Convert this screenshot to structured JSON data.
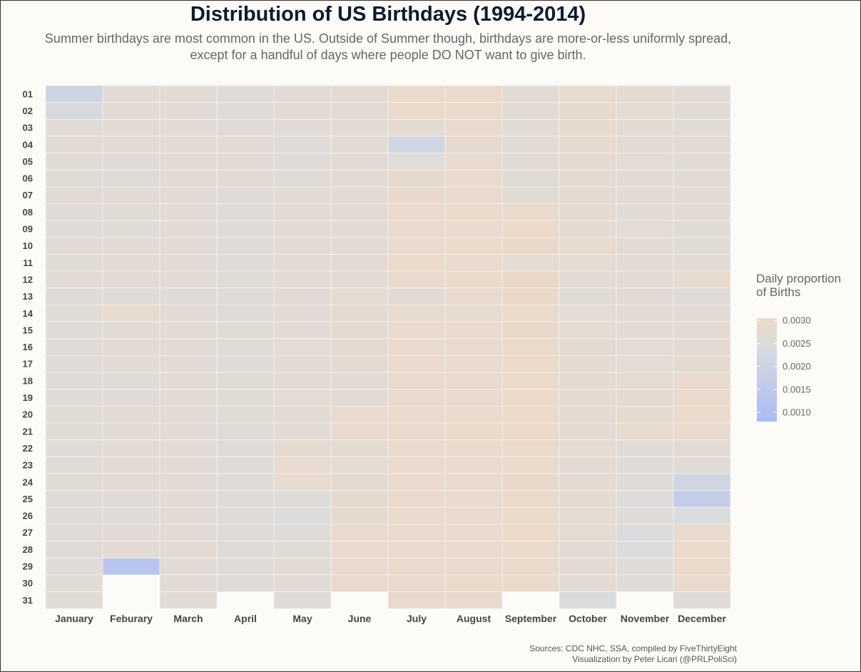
{
  "page": {
    "title": "Distribution of US Birthdays (1994-2014)",
    "subtitle_line1": "Summer birthdays are most common in the US. Outside of Summer though, birthdays are more-or-less uniformly spread,",
    "subtitle_line2": "except for a handful of days where people DO NOT want to give birth.",
    "caption_line1": "Sources: CDC NHC, SSA, compiled by FiveThirtyEight",
    "caption_line2": "Visualization by Peter Licari (@PRLPoliSci)"
  },
  "chart_data": {
    "type": "heatmap",
    "title": "Distribution of US Birthdays (1994-2014)",
    "x_categories": [
      "January",
      "Feburary",
      "March",
      "April",
      "May",
      "June",
      "July",
      "August",
      "September",
      "October",
      "November",
      "December"
    ],
    "y_categories": [
      "01",
      "02",
      "03",
      "04",
      "05",
      "06",
      "07",
      "08",
      "09",
      "10",
      "11",
      "12",
      "13",
      "14",
      "15",
      "16",
      "17",
      "18",
      "19",
      "20",
      "21",
      "22",
      "23",
      "24",
      "25",
      "26",
      "27",
      "28",
      "29",
      "30",
      "31"
    ],
    "legend": {
      "title_line1": "Daily proportion",
      "title_line2": "of Births",
      "range": [
        0.0008,
        0.00305
      ],
      "ticks": [
        0.003,
        0.0025,
        0.002,
        0.0015,
        0.001
      ],
      "tick_labels": [
        "0.0030",
        "0.0025",
        "0.0020",
        "0.0015",
        "0.0010"
      ],
      "color_low": "#a9bcf5",
      "color_mid": "#dcdcdc",
      "color_high": "#ecd9c8",
      "placement": "right"
    },
    "values": [
      [
        0.00205,
        0.0027,
        0.00272,
        0.00263,
        0.0027,
        0.00275,
        0.00295,
        0.00296,
        0.0027,
        0.00288,
        0.00279,
        0.0027
      ],
      [
        0.00235,
        0.00271,
        0.00271,
        0.00266,
        0.00268,
        0.00275,
        0.00294,
        0.00294,
        0.00271,
        0.00285,
        0.00278,
        0.00268
      ],
      [
        0.00264,
        0.0027,
        0.00271,
        0.00266,
        0.0027,
        0.00275,
        0.00281,
        0.00293,
        0.00271,
        0.00286,
        0.00274,
        0.00267
      ],
      [
        0.00275,
        0.00271,
        0.00271,
        0.00275,
        0.00262,
        0.00275,
        0.00215,
        0.00286,
        0.0027,
        0.00285,
        0.00275,
        0.0027
      ],
      [
        0.00268,
        0.00266,
        0.0027,
        0.00271,
        0.00265,
        0.00275,
        0.0026,
        0.0029,
        0.0027,
        0.00282,
        0.00273,
        0.00267
      ],
      [
        0.00266,
        0.00266,
        0.0027,
        0.0027,
        0.00267,
        0.00274,
        0.00285,
        0.00291,
        0.00268,
        0.00282,
        0.00275,
        0.0027
      ],
      [
        0.0027,
        0.0027,
        0.0027,
        0.00265,
        0.00271,
        0.00275,
        0.00298,
        0.0029,
        0.00272,
        0.00282,
        0.00276,
        0.0027
      ],
      [
        0.00264,
        0.00268,
        0.0027,
        0.00265,
        0.00271,
        0.00275,
        0.00294,
        0.00295,
        0.00296,
        0.00282,
        0.00271,
        0.00271
      ],
      [
        0.00264,
        0.00266,
        0.0027,
        0.00266,
        0.0027,
        0.00275,
        0.00293,
        0.0029,
        0.003,
        0.00282,
        0.00273,
        0.00268
      ],
      [
        0.00272,
        0.00275,
        0.00271,
        0.00265,
        0.00271,
        0.00275,
        0.00293,
        0.00294,
        0.00299,
        0.00289,
        0.00275,
        0.00268
      ],
      [
        0.00268,
        0.00271,
        0.00271,
        0.00265,
        0.00271,
        0.00275,
        0.00294,
        0.00293,
        0.00278,
        0.00278,
        0.00276,
        0.0027
      ],
      [
        0.0027,
        0.0027,
        0.0027,
        0.00268,
        0.00275,
        0.00275,
        0.00293,
        0.00294,
        0.00299,
        0.00276,
        0.00275,
        0.00288
      ],
      [
        0.00263,
        0.00262,
        0.00263,
        0.00261,
        0.0027,
        0.00278,
        0.00272,
        0.0029,
        0.00299,
        0.00268,
        0.00271,
        0.00266
      ],
      [
        0.00268,
        0.00292,
        0.0027,
        0.00266,
        0.0027,
        0.00283,
        0.00293,
        0.00293,
        0.003,
        0.00278,
        0.00275,
        0.00271
      ],
      [
        0.00266,
        0.00268,
        0.0027,
        0.00268,
        0.00271,
        0.00281,
        0.00293,
        0.00292,
        0.00299,
        0.00278,
        0.00275,
        0.00275
      ],
      [
        0.00266,
        0.0027,
        0.00271,
        0.00268,
        0.00273,
        0.00281,
        0.00295,
        0.00293,
        0.003,
        0.00279,
        0.00273,
        0.0028
      ],
      [
        0.00266,
        0.0027,
        0.0027,
        0.00266,
        0.0027,
        0.00281,
        0.00295,
        0.00292,
        0.00301,
        0.00281,
        0.00273,
        0.00283
      ],
      [
        0.00266,
        0.00266,
        0.0027,
        0.00268,
        0.00272,
        0.00276,
        0.00293,
        0.00293,
        0.003,
        0.0028,
        0.00278,
        0.0029
      ],
      [
        0.00266,
        0.00266,
        0.0027,
        0.00267,
        0.00273,
        0.00276,
        0.00293,
        0.00293,
        0.003,
        0.0028,
        0.0028,
        0.00296
      ],
      [
        0.00268,
        0.0027,
        0.0027,
        0.00267,
        0.00275,
        0.0029,
        0.00293,
        0.00294,
        0.003,
        0.0028,
        0.00285,
        0.00296
      ],
      [
        0.00268,
        0.00268,
        0.0027,
        0.00266,
        0.0027,
        0.0029,
        0.00293,
        0.00296,
        0.003,
        0.00281,
        0.0029,
        0.00292
      ],
      [
        0.00266,
        0.0027,
        0.0027,
        0.00266,
        0.00283,
        0.00283,
        0.00294,
        0.00296,
        0.003,
        0.00278,
        0.00266,
        0.00274
      ],
      [
        0.00266,
        0.0027,
        0.0027,
        0.00266,
        0.0029,
        0.00277,
        0.00294,
        0.00294,
        0.003,
        0.00276,
        0.00262,
        0.00266
      ],
      [
        0.00268,
        0.00271,
        0.0027,
        0.00266,
        0.00287,
        0.00285,
        0.00294,
        0.00293,
        0.00298,
        0.00281,
        0.00262,
        0.00215
      ],
      [
        0.00266,
        0.00266,
        0.0027,
        0.00266,
        0.00262,
        0.00285,
        0.00294,
        0.00293,
        0.003,
        0.00281,
        0.00255,
        0.0017
      ],
      [
        0.00266,
        0.00266,
        0.0027,
        0.00266,
        0.0025,
        0.00285,
        0.00293,
        0.00293,
        0.003,
        0.00278,
        0.00262,
        0.00245
      ],
      [
        0.00266,
        0.00271,
        0.0027,
        0.00266,
        0.00263,
        0.00292,
        0.00293,
        0.00293,
        0.003,
        0.00278,
        0.00245,
        0.0029
      ],
      [
        0.00266,
        0.00271,
        0.00275,
        0.00266,
        0.00268,
        0.00292,
        0.00293,
        0.00293,
        0.00296,
        0.00275,
        0.0025,
        0.00296
      ],
      [
        0.00264,
        0.0013,
        0.0027,
        0.00266,
        0.00271,
        0.0029,
        0.00293,
        0.00293,
        0.00296,
        0.00276,
        0.00266,
        0.00296
      ],
      [
        0.00268,
        null,
        0.0027,
        0.00266,
        0.00271,
        0.00293,
        0.00293,
        0.00294,
        0.00296,
        0.00276,
        0.00266,
        0.00293
      ],
      [
        0.00268,
        null,
        0.0027,
        null,
        0.00262,
        null,
        0.0029,
        0.0029,
        null,
        0.00245,
        null,
        0.00265
      ]
    ]
  }
}
